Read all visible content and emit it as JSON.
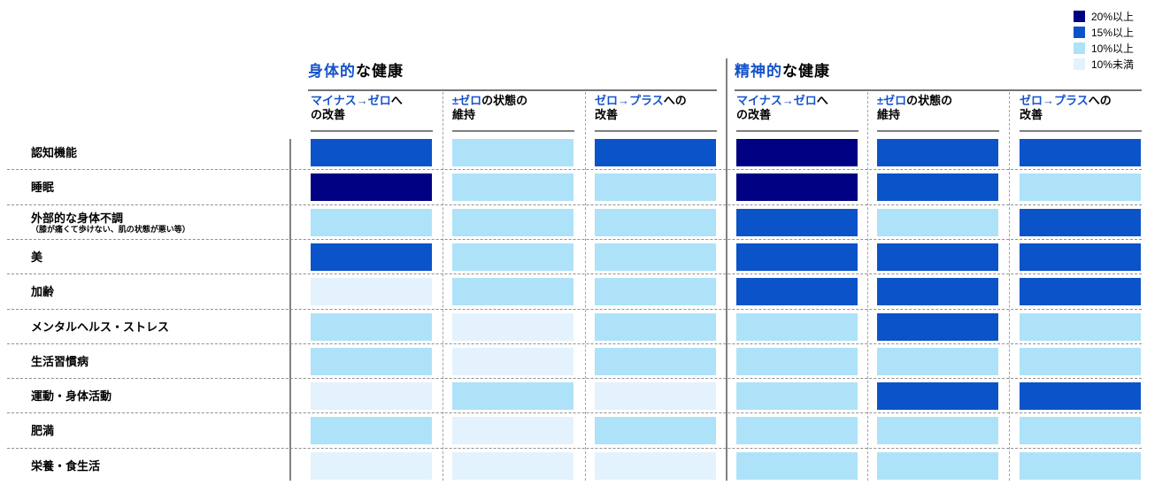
{
  "palette": {
    "ge20": "#000082",
    "ge15": "#0b53c8",
    "ge10": "#aee2f9",
    "lt10": "#e3f2fd",
    "header_highlight": "#1553cb"
  },
  "legend": {
    "items": [
      {
        "label": "20%以上",
        "level": "ge20",
        "color": "#000082"
      },
      {
        "label": "15%以上",
        "level": "ge15",
        "color": "#0b53c8"
      },
      {
        "label": "10%以上",
        "level": "ge10",
        "color": "#aee2f9"
      },
      {
        "label": "10%未満",
        "level": "lt10",
        "color": "#e3f2fd"
      }
    ]
  },
  "header": {
    "groups": [
      {
        "title_highlight": "身体的",
        "title_rest": "な健康",
        "columns": [
          {
            "line1_highlight": "マイナス→ゼロ",
            "line1_rest": "へ",
            "line2": "の改善"
          },
          {
            "line1_highlight": "±ゼロ",
            "line1_rest": "の状態の",
            "line2": "維持"
          },
          {
            "line1_highlight": "ゼロ→プラス",
            "line1_rest": "への",
            "line2": "改善"
          }
        ]
      },
      {
        "title_highlight": "精神的",
        "title_rest": "な健康",
        "columns": [
          {
            "line1_highlight": "マイナス→ゼロ",
            "line1_rest": "へ",
            "line2": "の改善"
          },
          {
            "line1_highlight": "±ゼロ",
            "line1_rest": "の状態の",
            "line2": "維持"
          },
          {
            "line1_highlight": "ゼロ→プラス",
            "line1_rest": "への",
            "line2": "改善"
          }
        ]
      }
    ]
  },
  "table": {
    "rows": [
      {
        "label": "認知機能",
        "sublabel": ""
      },
      {
        "label": "睡眠",
        "sublabel": ""
      },
      {
        "label": "外部的な身体不調",
        "sublabel": "（膝が痛くて歩けない、肌の状態が悪い等）"
      },
      {
        "label": "美",
        "sublabel": ""
      },
      {
        "label": "加齢",
        "sublabel": ""
      },
      {
        "label": "メンタルヘルス・ストレス",
        "sublabel": ""
      },
      {
        "label": "生活習慣病",
        "sublabel": ""
      },
      {
        "label": "運動・身体活動",
        "sublabel": ""
      },
      {
        "label": "肥満",
        "sublabel": ""
      },
      {
        "label": "栄養・食生活",
        "sublabel": ""
      }
    ]
  },
  "chart_data": {
    "type": "heatmap",
    "title": "",
    "column_groups": [
      {
        "title": "身体的な健康",
        "columns": [
          "マイナス→ゼロへの改善",
          "±ゼロの状態の維持",
          "ゼロ→プラスへの改善"
        ]
      },
      {
        "title": "精神的な健康",
        "columns": [
          "マイナス→ゼロへの改善",
          "±ゼロの状態の維持",
          "ゼロ→プラスへの改善"
        ]
      }
    ],
    "rows": [
      "認知機能",
      "睡眠",
      "外部的な身体不調（膝が痛くて歩けない、肌の状態が悪い等）",
      "美",
      "加齢",
      "メンタルヘルス・ストレス",
      "生活習慣病",
      "運動・身体活動",
      "肥満",
      "栄養・食生活"
    ],
    "levels": [
      {
        "key": "ge20",
        "label": "20%以上",
        "color": "#000082"
      },
      {
        "key": "ge15",
        "label": "15%以上",
        "color": "#0b53c8"
      },
      {
        "key": "ge10",
        "label": "10%以上",
        "color": "#aee2f9"
      },
      {
        "key": "lt10",
        "label": "10%未満",
        "color": "#e3f2fd"
      }
    ],
    "values": [
      [
        "ge15",
        "ge10",
        "ge15",
        "ge20",
        "ge15",
        "ge15"
      ],
      [
        "ge20",
        "ge10",
        "ge10",
        "ge20",
        "ge15",
        "ge10"
      ],
      [
        "ge10",
        "ge10",
        "ge10",
        "ge15",
        "ge10",
        "ge15"
      ],
      [
        "ge15",
        "ge10",
        "ge10",
        "ge15",
        "ge15",
        "ge15"
      ],
      [
        "lt10",
        "ge10",
        "ge10",
        "ge15",
        "ge15",
        "ge15"
      ],
      [
        "ge10",
        "lt10",
        "ge10",
        "ge10",
        "ge15",
        "ge10"
      ],
      [
        "ge10",
        "lt10",
        "ge10",
        "ge10",
        "ge10",
        "ge10"
      ],
      [
        "lt10",
        "ge10",
        "lt10",
        "ge10",
        "ge15",
        "ge15"
      ],
      [
        "ge10",
        "lt10",
        "ge10",
        "ge10",
        "ge10",
        "ge10"
      ],
      [
        "lt10",
        "lt10",
        "lt10",
        "ge10",
        "ge10",
        "ge10"
      ]
    ],
    "legend_position": "top-right",
    "grid": "dashed-row-separators, dotted-column-separators"
  }
}
